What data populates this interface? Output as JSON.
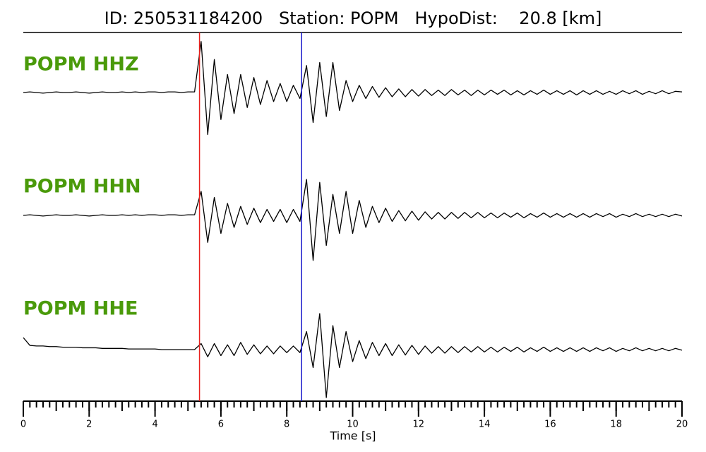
{
  "chart_data": {
    "type": "line",
    "title": "ID: 250531184200   Station: POPM   HypoDist:    20.8 [km]",
    "xlabel": "Time [s]",
    "xlim": [
      0,
      20
    ],
    "xticks": [
      0,
      2,
      4,
      6,
      8,
      10,
      12,
      14,
      16,
      18,
      20
    ],
    "xminor_step": 0.2,
    "ylim": [
      -1,
      1
    ],
    "label_color": "#4a9a0a",
    "picks": [
      {
        "x": 5.35,
        "color": "#e8201c"
      },
      {
        "x": 8.45,
        "color": "#1a1acc"
      }
    ],
    "x": [
      0,
      0.2,
      0.4,
      0.6,
      0.8,
      1,
      1.2,
      1.4,
      1.6,
      1.8,
      2,
      2.2,
      2.4,
      2.6,
      2.8,
      3,
      3.2,
      3.4,
      3.6,
      3.8,
      4,
      4.2,
      4.4,
      4.6,
      4.8,
      5,
      5.2,
      5.4,
      5.6,
      5.8,
      6,
      6.2,
      6.4,
      6.6,
      6.8,
      7,
      7.2,
      7.4,
      7.6,
      7.8,
      8,
      8.2,
      8.4,
      8.6,
      8.8,
      9,
      9.2,
      9.4,
      9.6,
      9.8,
      10,
      10.2,
      10.4,
      10.6,
      10.8,
      11,
      11.2,
      11.4,
      11.6,
      11.8,
      12,
      12.2,
      12.4,
      12.6,
      12.8,
      13,
      13.2,
      13.4,
      13.6,
      13.8,
      14,
      14.2,
      14.4,
      14.6,
      14.8,
      15,
      15.2,
      15.4,
      15.6,
      15.8,
      16,
      16.2,
      16.4,
      16.6,
      16.8,
      17,
      17.2,
      17.4,
      17.6,
      17.8,
      18,
      18.2,
      18.4,
      18.6,
      18.8,
      19,
      19.2,
      19.4,
      19.6,
      19.8,
      20
    ],
    "series": [
      {
        "name": "POPM HHZ",
        "color": "#000000",
        "values": [
          0,
          0.01,
          0,
          -0.01,
          0,
          0.01,
          0,
          0,
          0.01,
          0,
          -0.01,
          0,
          0.01,
          0,
          0,
          0.01,
          0,
          0.01,
          0,
          0.01,
          0.01,
          0,
          0.01,
          0.01,
          0,
          0.01,
          0.01,
          0.85,
          -0.7,
          0.55,
          -0.45,
          0.3,
          -0.35,
          0.3,
          -0.25,
          0.25,
          -0.2,
          0.2,
          -0.15,
          0.15,
          -0.15,
          0.12,
          -0.1,
          0.45,
          -0.5,
          0.5,
          -0.4,
          0.5,
          -0.3,
          0.2,
          -0.15,
          0.12,
          -0.1,
          0.1,
          -0.08,
          0.08,
          -0.07,
          0.06,
          -0.07,
          0.05,
          -0.06,
          0.05,
          -0.05,
          0.04,
          -0.05,
          0.05,
          -0.04,
          0.04,
          -0.05,
          0.04,
          -0.04,
          0.04,
          -0.03,
          0.04,
          -0.04,
          0.03,
          -0.04,
          0.03,
          -0.03,
          0.04,
          -0.03,
          0.03,
          -0.03,
          0.03,
          -0.04,
          0.03,
          -0.03,
          0.03,
          -0.03,
          0.02,
          -0.03,
          0.03,
          -0.02,
          0.03,
          -0.03,
          0.02,
          -0.02,
          0.03,
          -0.02,
          0.02,
          0.01
        ]
      },
      {
        "name": "POPM HHN",
        "color": "#000000",
        "values": [
          0,
          0.01,
          0,
          -0.01,
          0,
          0.01,
          0,
          0,
          0.01,
          0,
          -0.01,
          0,
          0.01,
          0,
          0,
          0.01,
          0,
          0.01,
          0,
          0.01,
          0.01,
          0,
          0.01,
          0.01,
          0,
          0.01,
          0.01,
          0.4,
          -0.45,
          0.3,
          -0.3,
          0.2,
          -0.2,
          0.15,
          -0.15,
          0.12,
          -0.12,
          0.1,
          -0.1,
          0.1,
          -0.12,
          0.1,
          -0.1,
          0.6,
          -0.75,
          0.55,
          -0.5,
          0.35,
          -0.3,
          0.4,
          -0.3,
          0.25,
          -0.2,
          0.15,
          -0.12,
          0.12,
          -0.1,
          0.08,
          -0.09,
          0.07,
          -0.08,
          0.06,
          -0.06,
          0.05,
          -0.06,
          0.05,
          -0.05,
          0.05,
          -0.04,
          0.05,
          -0.04,
          0.04,
          -0.04,
          0.04,
          -0.03,
          0.04,
          -0.04,
          0.03,
          -0.03,
          0.04,
          -0.03,
          0.03,
          -0.03,
          0.03,
          -0.03,
          0.03,
          -0.03,
          0.03,
          -0.02,
          0.03,
          -0.03,
          0.02,
          -0.02,
          0.03,
          -0.02,
          0.02,
          -0.02,
          0.02,
          -0.02,
          0.02,
          -0.01
        ]
      },
      {
        "name": "POPM HHE",
        "color": "#000000",
        "values": [
          0.2,
          0.07,
          0.06,
          0.06,
          0.05,
          0.05,
          0.04,
          0.04,
          0.04,
          0.03,
          0.03,
          0.03,
          0.02,
          0.02,
          0.02,
          0.02,
          0.01,
          0.01,
          0.01,
          0.01,
          0.01,
          0,
          0,
          0,
          0,
          0,
          0,
          0.1,
          -0.12,
          0.1,
          -0.1,
          0.08,
          -0.1,
          0.12,
          -0.08,
          0.08,
          -0.07,
          0.06,
          -0.07,
          0.06,
          -0.05,
          0.06,
          -0.05,
          0.3,
          -0.3,
          0.6,
          -0.8,
          0.4,
          -0.3,
          0.3,
          -0.2,
          0.15,
          -0.15,
          0.12,
          -0.1,
          0.1,
          -0.1,
          0.08,
          -0.09,
          0.07,
          -0.08,
          0.06,
          -0.06,
          0.05,
          -0.06,
          0.05,
          -0.05,
          0.05,
          -0.04,
          0.05,
          -0.04,
          0.04,
          -0.04,
          0.04,
          -0.03,
          0.04,
          -0.04,
          0.03,
          -0.03,
          0.04,
          -0.03,
          0.03,
          -0.03,
          0.03,
          -0.03,
          0.03,
          -0.03,
          0.03,
          -0.02,
          0.03,
          -0.03,
          0.02,
          -0.02,
          0.03,
          -0.02,
          0.02,
          -0.02,
          0.02,
          -0.02,
          0.02,
          -0.01
        ]
      }
    ]
  }
}
